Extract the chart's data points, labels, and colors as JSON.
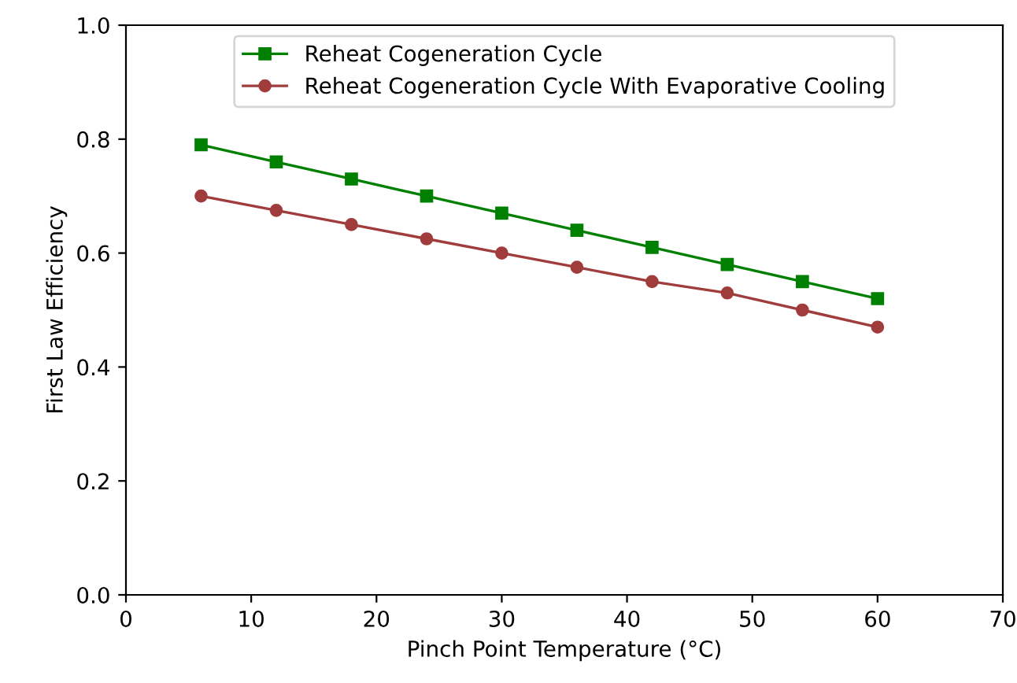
{
  "chart_data": {
    "type": "line",
    "xlabel": "Pinch Point Temperature (°C)",
    "ylabel": "First Law Efficiency",
    "x": [
      6,
      12,
      18,
      24,
      30,
      36,
      42,
      48,
      54,
      60
    ],
    "series": [
      {
        "name": "Reheat Cogeneration Cycle",
        "color": "#008000",
        "marker": "square",
        "values": [
          0.79,
          0.76,
          0.73,
          0.7,
          0.67,
          0.64,
          0.61,
          0.58,
          0.55,
          0.52
        ]
      },
      {
        "name": "Reheat Cogeneration Cycle With Evaporative Cooling",
        "color": "#a03c3c",
        "marker": "circle",
        "values": [
          0.7,
          0.675,
          0.65,
          0.625,
          0.6,
          0.575,
          0.55,
          0.53,
          0.5,
          0.47
        ]
      }
    ],
    "xlim": [
      0,
      70
    ],
    "xticks": [
      0,
      10,
      20,
      30,
      40,
      50,
      60,
      70
    ],
    "ylim": [
      0,
      1
    ],
    "yticks": [
      {
        "value": 0,
        "label": "0.0"
      },
      0.2,
      0.4,
      0.6,
      0.8,
      {
        "value": 1,
        "label": "1.0"
      }
    ],
    "legend": "top",
    "grid": false,
    "line_style": "solid"
  }
}
